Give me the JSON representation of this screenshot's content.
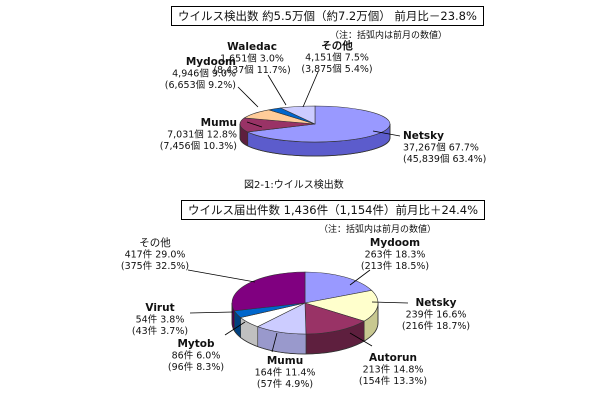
{
  "chart_data": [
    {
      "type": "pie",
      "title": "ウイルス検出数 約5.5万個（約7.2万個） 前月比－23.8%",
      "note": "（注：括弧内は前月の数値）",
      "caption": "図2-1:ウイルス検出数",
      "slices": [
        {
          "name": "Netsky",
          "value": 37267,
          "percent": 67.7,
          "color": "#9999ff",
          "side": "#5c5ccc",
          "label": [
            "Netsky",
            "37,267個 67.7%",
            "(45,839個 63.4%)"
          ]
        },
        {
          "name": "Mumu",
          "value": 7031,
          "percent": 12.8,
          "color": "#993366",
          "side": "#5e1f3e",
          "label": [
            "Mumu",
            "7,031個 12.8%",
            "(7,456個 10.3%)"
          ]
        },
        {
          "name": "Mydoom",
          "value": 4946,
          "percent": 9.0,
          "color": "#ffcc99",
          "side": "#cc9966",
          "label": [
            "Mydoom",
            "4,946個 9.0%",
            "(6,653個 9.2%)"
          ]
        },
        {
          "name": "Waledac",
          "value": 1651,
          "percent": 3.0,
          "color": "#0066cc",
          "side": "#00407f",
          "label": [
            "Waledac",
            "1,651個 3.0%",
            "(8,437個 11.7%)"
          ]
        },
        {
          "name": "その他",
          "value": 4151,
          "percent": 7.5,
          "color": "#ccccff",
          "side": "#9999cc",
          "label": [
            "その他",
            "4,151個 7.5%",
            "(3,875個 5.4%)"
          ]
        }
      ]
    },
    {
      "type": "pie",
      "title": "ウイルス届出件数 1,436件（1,154件）前月比＋24.4%",
      "note": "（注：括弧内は前月の数値）",
      "slices": [
        {
          "name": "Mydoom",
          "value": 263,
          "percent": 18.3,
          "color": "#9999ff",
          "side": "#5c5ccc",
          "label": [
            "Mydoom",
            "263件 18.3%",
            "(213件 18.5%)"
          ]
        },
        {
          "name": "Netsky",
          "value": 239,
          "percent": 16.6,
          "color": "#ffffcc",
          "side": "#c8c890",
          "label": [
            "Netsky",
            "239件 16.6%",
            "(216件 18.7%)"
          ]
        },
        {
          "name": "Autorun",
          "value": 213,
          "percent": 14.8,
          "color": "#993366",
          "side": "#5e1f3e",
          "label": [
            "Autorun",
            "213件 14.8%",
            "(154件 13.3%)"
          ]
        },
        {
          "name": "Mumu",
          "value": 164,
          "percent": 11.4,
          "color": "#ccccff",
          "side": "#9999cc",
          "label": [
            "Mumu",
            "164件 11.4%",
            "(57件 4.9%)"
          ]
        },
        {
          "name": "Mytob",
          "value": 86,
          "percent": 6.0,
          "color": "#ffffff",
          "side": "#c0c0c0",
          "label": [
            "Mytob",
            "86件 6.0%",
            "(96件 8.3%)"
          ]
        },
        {
          "name": "Virut",
          "value": 54,
          "percent": 3.8,
          "color": "#0066cc",
          "side": "#00407f",
          "label": [
            "Virut",
            "54件 3.8%",
            "(43件 3.7%)"
          ]
        },
        {
          "name": "その他",
          "value": 417,
          "percent": 29.0,
          "color": "#800080",
          "side": "#4d004d",
          "label": [
            "その他",
            "417件 29.0%",
            "(375件 32.5%)"
          ]
        }
      ]
    }
  ]
}
